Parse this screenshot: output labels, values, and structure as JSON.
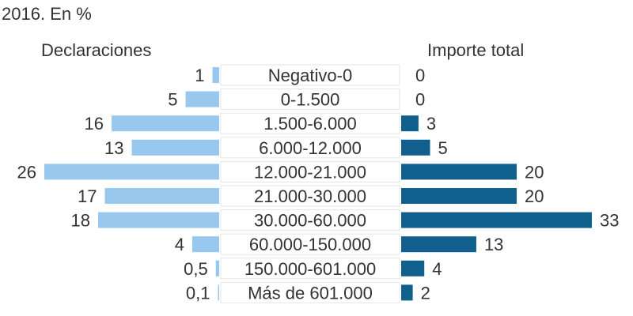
{
  "chart_data": {
    "type": "bar",
    "subtitle": "2016. En %",
    "categories": [
      "Negativo-0",
      "0-1.500",
      "1.500-6.000",
      "6.000-12.000",
      "12.000-21.000",
      "21.000-30.000",
      "30.000-60.000",
      "60.000-150.000",
      "150.000-601.000",
      "Más de 601.000"
    ],
    "series": [
      {
        "name": "Declaraciones",
        "color": "#99c8ef",
        "values": [
          1,
          5,
          16,
          13,
          26,
          17,
          18,
          4,
          0.5,
          0.1
        ],
        "labels": [
          "1",
          "5",
          "16",
          "13",
          "26",
          "17",
          "18",
          "4",
          "0,5",
          "0,1"
        ]
      },
      {
        "name": "Importe total",
        "color": "#115f8c",
        "values": [
          0,
          0,
          3,
          5,
          20,
          20,
          33,
          13,
          4,
          2
        ],
        "labels": [
          "0",
          "0",
          "3",
          "5",
          "20",
          "20",
          "33",
          "13",
          "4",
          "2"
        ]
      }
    ],
    "xlabel": "",
    "ylabel": "",
    "grid": false,
    "legend": "top"
  }
}
